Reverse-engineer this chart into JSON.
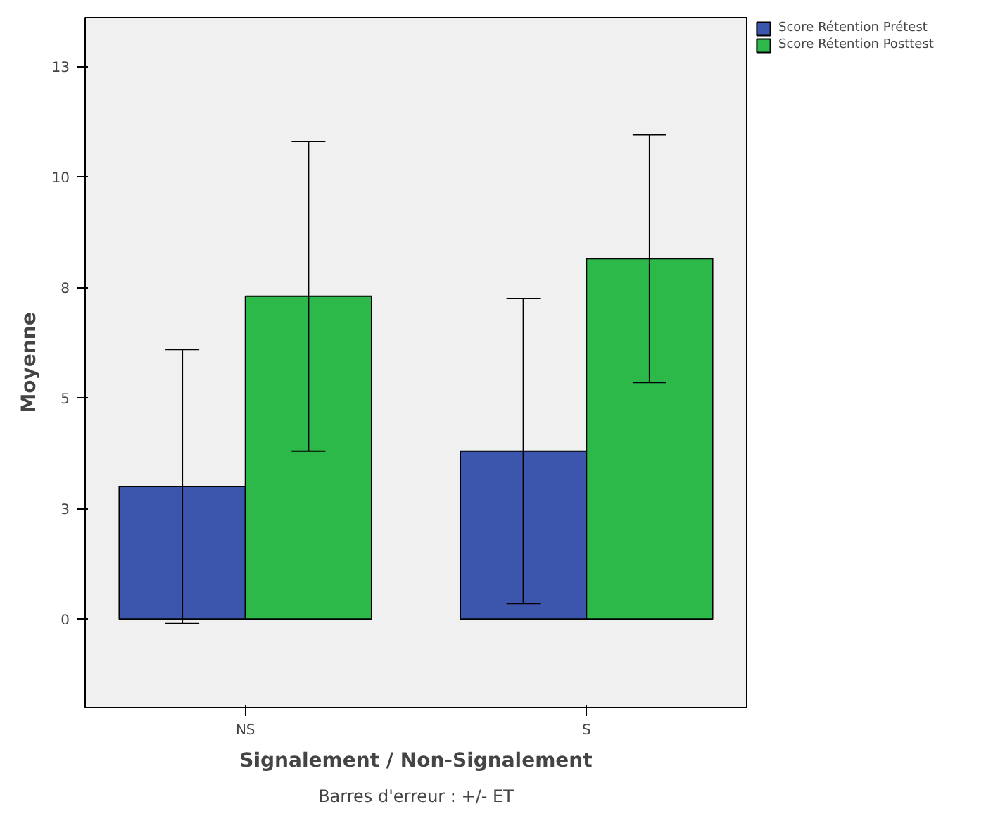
{
  "chart_data": {
    "type": "bar",
    "xlabel": "Signalement / Non-Signalement",
    "ylabel": "Moyenne",
    "categories": [
      "NS",
      "S"
    ],
    "series": [
      {
        "name": "Score Rétention Prétest",
        "color": "#3c56ad",
        "values": [
          3.0,
          3.8
        ],
        "errors": [
          3.1,
          3.45
        ]
      },
      {
        "name": "Score Rétention Posttest",
        "color": "#2db84a",
        "values": [
          7.3,
          8.15
        ],
        "errors": [
          3.5,
          2.8
        ]
      }
    ],
    "ylim": [
      -2,
      13.6
    ],
    "yticks": [
      0,
      {
        "value": 2.5,
        "label": "3"
      },
      {
        "value": 5,
        "label": "5"
      },
      {
        "value": 7.5,
        "label": "8"
      },
      {
        "value": 10,
        "label": "10"
      },
      {
        "value": 12.5,
        "label": "13"
      }
    ],
    "grid": false,
    "legend": "top right",
    "annotations": [
      "Barres d'erreur : +/- ET"
    ]
  }
}
